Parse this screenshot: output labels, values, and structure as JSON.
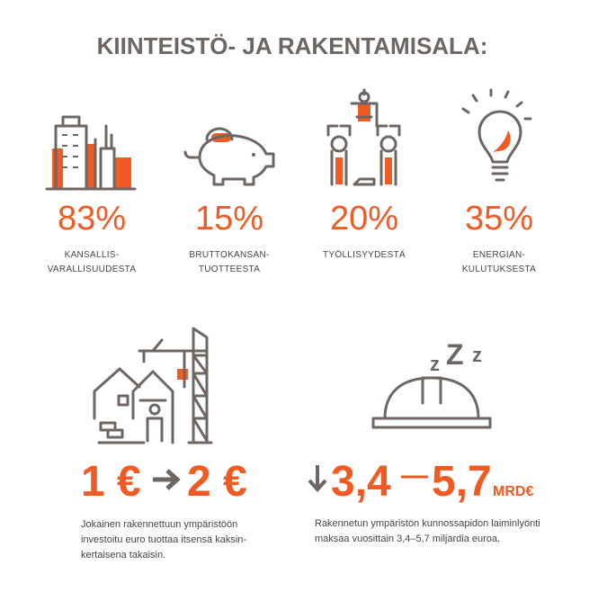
{
  "header": {
    "title": "KIINTEISTÖ- JA RAKENTAMISALA:"
  },
  "stats": [
    {
      "value": "83%",
      "label": [
        "KANSALLIS-",
        "VARALLISUUDESTA"
      ]
    },
    {
      "value": "15%",
      "label": [
        "BRUTTOKANSAN-",
        "TUOTTEESTA"
      ]
    },
    {
      "value": "20%",
      "label": [
        "TYÖLLISYYDESTÄ"
      ]
    },
    {
      "value": "35%",
      "label": [
        "ENERGIAN-",
        "KULUTUKSESTA"
      ]
    }
  ],
  "investment": {
    "from": "1 €",
    "to": "2 €",
    "text": [
      "Jokainen rakennettuun ympäristöön",
      "investoitu euro tuottaa itsensä kaksin-",
      "kertaisena takaisin."
    ]
  },
  "maintenance": {
    "zzz": [
      "z",
      "Z",
      "z"
    ],
    "low": "3,4",
    "high": "5,7",
    "unit": "MRD€",
    "text": [
      "Rakennetun ympäristön kunnossapidon laiminlyönti",
      "maksaa vuosittain 3,4–5,7 miljardia euroa."
    ]
  }
}
